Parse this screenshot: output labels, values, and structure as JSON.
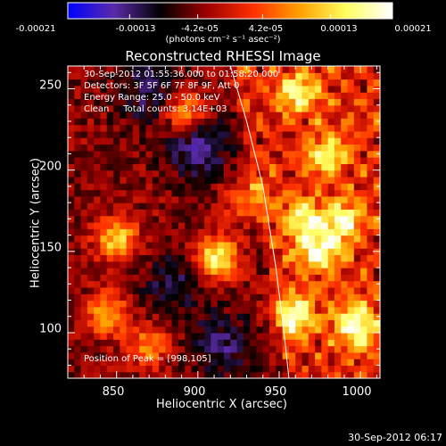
{
  "chart_data": {
    "type": "heatmap",
    "title": "Reconstructed RHESSI Image",
    "xlabel": "Heliocentric X (arcsec)",
    "ylabel": "Heliocentric Y (arcsec)",
    "xlim": [
      820,
      1012
    ],
    "ylim": [
      72,
      264
    ],
    "x_ticks": [
      "850",
      "900",
      "950",
      "1000"
    ],
    "x_tick_values": [
      850,
      900,
      950,
      1000
    ],
    "y_ticks": [
      "100",
      "150",
      "200",
      "250"
    ],
    "y_tick_values": [
      100,
      150,
      200,
      250
    ],
    "colorbar": {
      "min": -0.00021,
      "max": 0.00021,
      "tick_labels": [
        "-0.00021",
        "-0.00013",
        "-4.2e-05",
        "4.2e-05",
        "0.00013",
        "0.00021"
      ],
      "tick_values": [
        -0.00021,
        -0.00013,
        -4.2e-05,
        4.2e-05,
        0.00013,
        0.00021
      ],
      "units_text": "(photons cm⁻² s⁻¹ asec⁻²)",
      "colormap": [
        "#0000ff",
        "#5a2aa8",
        "#000000",
        "#9e0000",
        "#ff3000",
        "#ffa000",
        "#ffff60",
        "#ffffff"
      ]
    },
    "annotations": [
      "30-Sep-2012 01:55:36.000 to 01:58:20.000",
      "Detectors: 3F 5F 6F 7F 8F 9F, Att 0",
      "Energy Range: 25.0 - 50.0 keV",
      "Clean     Total counts: 3.14E+03"
    ],
    "peak_label": "Position of Peak = [998,105]",
    "peak_position": [
      998,
      105
    ],
    "limb_line": [
      [
        920,
        264
      ],
      [
        930,
        230
      ],
      [
        940,
        190
      ],
      [
        948,
        140
      ],
      [
        953,
        100
      ],
      [
        956,
        72
      ]
    ],
    "bright_sources": [
      {
        "x": 912,
        "y": 146,
        "amp": 1.0
      },
      {
        "x": 998,
        "y": 105,
        "amp": 1.0
      },
      {
        "x": 960,
        "y": 110,
        "amp": 0.95
      },
      {
        "x": 975,
        "y": 150,
        "amp": 0.9
      },
      {
        "x": 965,
        "y": 170,
        "amp": 0.8
      },
      {
        "x": 990,
        "y": 170,
        "amp": 0.8
      },
      {
        "x": 980,
        "y": 210,
        "amp": 0.75
      },
      {
        "x": 962,
        "y": 248,
        "amp": 0.8
      },
      {
        "x": 892,
        "y": 236,
        "amp": 0.75
      },
      {
        "x": 850,
        "y": 158,
        "amp": 0.8
      },
      {
        "x": 845,
        "y": 112,
        "amp": 0.7
      },
      {
        "x": 870,
        "y": 92,
        "amp": 0.55
      },
      {
        "x": 930,
        "y": 182,
        "amp": 0.55
      }
    ],
    "cool_regions": [
      {
        "x": 900,
        "y": 215,
        "amp": 0.8
      },
      {
        "x": 870,
        "y": 248,
        "amp": 0.6
      },
      {
        "x": 915,
        "y": 92,
        "amp": 0.65
      },
      {
        "x": 885,
        "y": 130,
        "amp": 0.55
      }
    ]
  },
  "footer": {
    "date": "30-Sep-2012 06:17"
  }
}
